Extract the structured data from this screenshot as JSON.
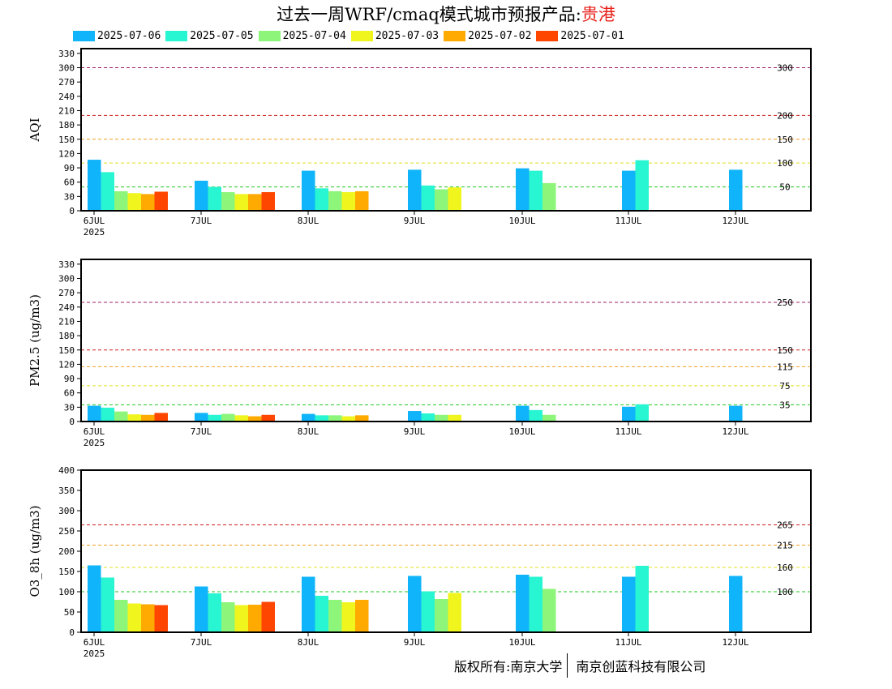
{
  "title": {
    "main": "过去一周WRF/cmaq模式城市预报产品:",
    "city": "贵港",
    "city_color": "#e8201a"
  },
  "legend": [
    {
      "label": "2025-07-06",
      "color": "#10b4fa"
    },
    {
      "label": "2025-07-05",
      "color": "#28f5d2"
    },
    {
      "label": "2025-07-04",
      "color": "#8cf57a"
    },
    {
      "label": "2025-07-03",
      "color": "#f0f51e"
    },
    {
      "label": "2025-07-02",
      "color": "#ffaa00"
    },
    {
      "label": "2025-07-01",
      "color": "#ff4600"
    }
  ],
  "footer": {
    "left": "版权所有:南京大学",
    "right": "南京创蓝科技有限公司"
  },
  "chart_data": [
    {
      "type": "bar",
      "ylabel": "AQI",
      "ylim": [
        0,
        340
      ],
      "yticks": [
        0,
        30,
        60,
        90,
        120,
        150,
        180,
        210,
        240,
        270,
        300,
        330
      ],
      "categories": [
        "6JUL",
        "7JUL",
        "8JUL",
        "9JUL",
        "10JUL",
        "11JUL",
        "12JUL"
      ],
      "year_label": "2025",
      "thresholds": [
        {
          "value": 50,
          "label": "50",
          "color": "#22c822"
        },
        {
          "value": 100,
          "label": "100",
          "color": "#e0e020"
        },
        {
          "value": 150,
          "label": "150",
          "color": "#f0a020"
        },
        {
          "value": 200,
          "label": "200",
          "color": "#d02020"
        },
        {
          "value": 300,
          "label": "300",
          "color": "#a0206a"
        }
      ],
      "series": [
        {
          "name": "2025-07-06",
          "values": [
            107,
            63,
            84,
            86,
            89,
            84,
            86
          ]
        },
        {
          "name": "2025-07-05",
          "values": [
            81,
            50,
            47,
            53,
            84,
            106,
            null
          ]
        },
        {
          "name": "2025-07-04",
          "values": [
            41,
            39,
            41,
            45,
            58,
            null,
            null
          ]
        },
        {
          "name": "2025-07-03",
          "values": [
            37,
            35,
            39,
            49,
            null,
            null,
            null
          ]
        },
        {
          "name": "2025-07-02",
          "values": [
            35,
            35,
            41,
            null,
            null,
            null,
            null
          ]
        },
        {
          "name": "2025-07-01",
          "values": [
            40,
            39,
            null,
            null,
            null,
            null,
            null
          ]
        }
      ]
    },
    {
      "type": "bar",
      "ylabel": "PM2.5 (ug/m3)",
      "ylim": [
        0,
        340
      ],
      "yticks": [
        0,
        30,
        60,
        90,
        120,
        150,
        180,
        210,
        240,
        270,
        300,
        330
      ],
      "categories": [
        "6JUL",
        "7JUL",
        "8JUL",
        "9JUL",
        "10JUL",
        "11JUL",
        "12JUL"
      ],
      "year_label": "2025",
      "thresholds": [
        {
          "value": 35,
          "label": "35",
          "color": "#22c822"
        },
        {
          "value": 75,
          "label": "75",
          "color": "#e0e020"
        },
        {
          "value": 115,
          "label": "115",
          "color": "#f0a020"
        },
        {
          "value": 150,
          "label": "150",
          "color": "#d02020"
        },
        {
          "value": 250,
          "label": "250",
          "color": "#a0206a"
        }
      ],
      "series": [
        {
          "name": "2025-07-06",
          "values": [
            33,
            18,
            16,
            22,
            33,
            31,
            33
          ]
        },
        {
          "name": "2025-07-05",
          "values": [
            29,
            14,
            13,
            17,
            24,
            36,
            null
          ]
        },
        {
          "name": "2025-07-04",
          "values": [
            21,
            16,
            13,
            14,
            14,
            null,
            null
          ]
        },
        {
          "name": "2025-07-03",
          "values": [
            15,
            13,
            11,
            14,
            null,
            null,
            null
          ]
        },
        {
          "name": "2025-07-02",
          "values": [
            14,
            11,
            13,
            null,
            null,
            null,
            null
          ]
        },
        {
          "name": "2025-07-01",
          "values": [
            18,
            14,
            null,
            null,
            null,
            null,
            null
          ]
        }
      ]
    },
    {
      "type": "bar",
      "ylabel": "O3_8h (ug/m3)",
      "ylim": [
        0,
        400
      ],
      "yticks": [
        0,
        50,
        100,
        150,
        200,
        250,
        300,
        350,
        400
      ],
      "categories": [
        "6JUL",
        "7JUL",
        "8JUL",
        "9JUL",
        "10JUL",
        "11JUL",
        "12JUL"
      ],
      "year_label": "2025",
      "thresholds": [
        {
          "value": 100,
          "label": "100",
          "color": "#22c822"
        },
        {
          "value": 160,
          "label": "160",
          "color": "#e0e020"
        },
        {
          "value": 215,
          "label": "215",
          "color": "#f0a020"
        },
        {
          "value": 265,
          "label": "265",
          "color": "#d02020"
        }
      ],
      "series": [
        {
          "name": "2025-07-06",
          "values": [
            165,
            113,
            137,
            139,
            142,
            137,
            139
          ]
        },
        {
          "name": "2025-07-05",
          "values": [
            135,
            96,
            90,
            101,
            137,
            164,
            null
          ]
        },
        {
          "name": "2025-07-04",
          "values": [
            80,
            74,
            80,
            82,
            107,
            null,
            null
          ]
        },
        {
          "name": "2025-07-03",
          "values": [
            71,
            67,
            74,
            97,
            null,
            null,
            null
          ]
        },
        {
          "name": "2025-07-02",
          "values": [
            69,
            68,
            80,
            null,
            null,
            null,
            null
          ]
        },
        {
          "name": "2025-07-01",
          "values": [
            67,
            75,
            null,
            null,
            null,
            null,
            null
          ]
        }
      ]
    }
  ]
}
